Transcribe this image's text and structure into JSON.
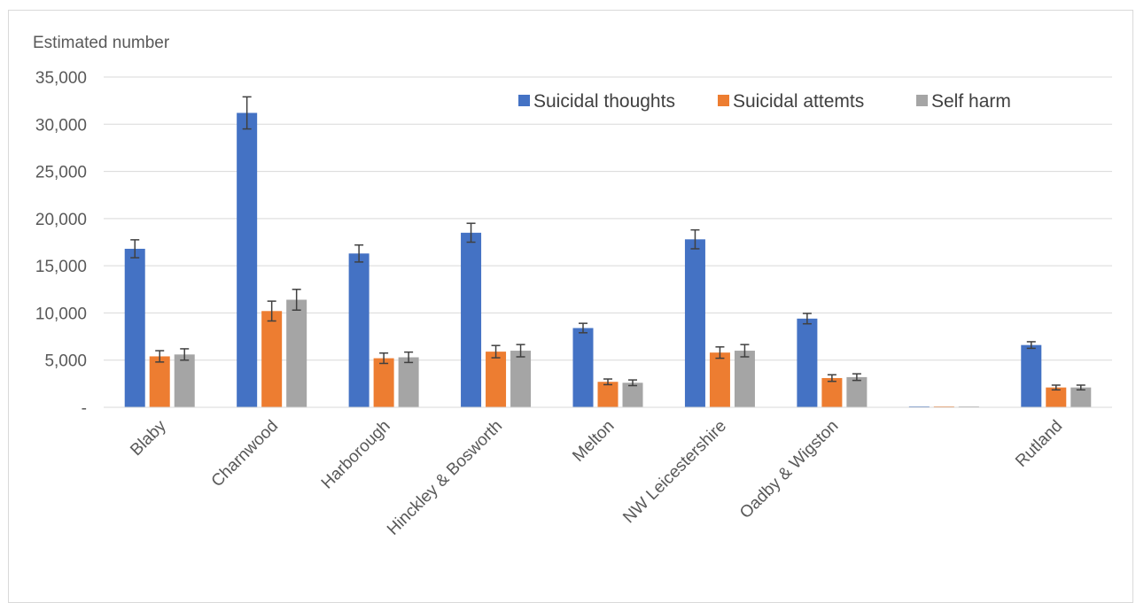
{
  "chart_data": {
    "type": "bar",
    "ylabel": "Estimated number",
    "categories": [
      "Blaby",
      "Charnwood",
      "Harborough",
      "Hinckley & Bosworth",
      "Melton",
      "NW Leicestershire",
      "Oadby & Wigston",
      "",
      "Rutland"
    ],
    "series": [
      {
        "name": "Suicidal thoughts",
        "color": "#4472C4",
        "values": [
          16800,
          31200,
          16300,
          18500,
          8400,
          17800,
          9400,
          0,
          6600
        ],
        "error": [
          950,
          1700,
          900,
          1000,
          500,
          1000,
          550,
          0,
          350
        ]
      },
      {
        "name": "Suicidal attemts",
        "color": "#ED7D31",
        "values": [
          5400,
          10200,
          5200,
          5900,
          2700,
          5800,
          3100,
          0,
          2100
        ],
        "error": [
          600,
          1050,
          550,
          650,
          300,
          600,
          350,
          0,
          250
        ]
      },
      {
        "name": "Self harm",
        "color": "#A5A5A5",
        "values": [
          5600,
          11400,
          5300,
          6000,
          2600,
          6000,
          3200,
          0,
          2100
        ],
        "error": [
          600,
          1100,
          550,
          650,
          300,
          650,
          350,
          0,
          250
        ]
      }
    ],
    "ylim": [
      0,
      35000
    ],
    "yticks": [
      0,
      5000,
      10000,
      15000,
      20000,
      25000,
      30000,
      35000
    ],
    "ytick_labels": [
      "-",
      "5,000",
      "10,000",
      "15,000",
      "20,000",
      "25,000",
      "30,000",
      "35,000"
    ],
    "grid": true,
    "legend_position": "top-right",
    "error_bars": true
  }
}
